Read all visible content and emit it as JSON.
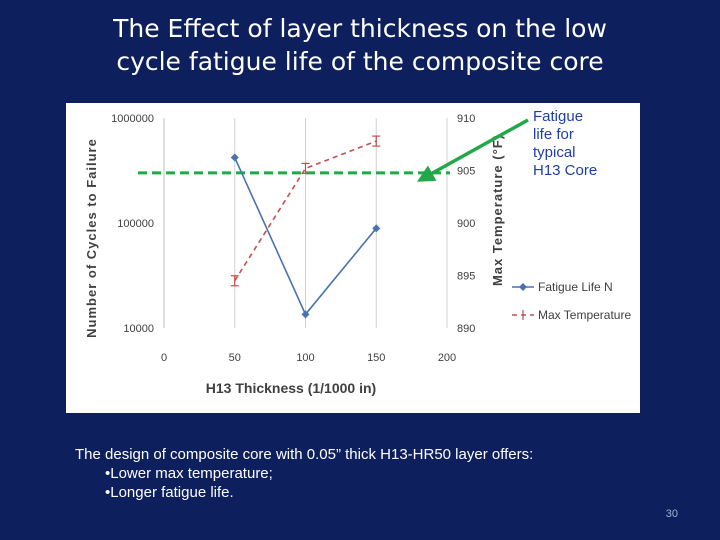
{
  "slide": {
    "title_line1": "The Effect of layer thickness on the low",
    "title_line2": "cycle fatigue life of the composite core",
    "callout": {
      "line1": "Fatigue",
      "line2": "life for",
      "line3": "typical",
      "line4": "H13 Core"
    },
    "body": {
      "intro": "The design of composite core with 0.05” thick H13-HR50 layer offers:",
      "bullets": [
        "•Lower max temperature;",
        "•Longer fatigue life."
      ]
    },
    "page_number": "30"
  },
  "colors": {
    "background": "#0d1f5c",
    "fatigue_series": "#4a72b0",
    "temperature_series": "#c0504d",
    "reference_line": "#22a84a"
  },
  "chart_data": {
    "type": "line",
    "title": "",
    "xlabel": "H13 Thickness (1/1000 in)",
    "ylabel": "Number of Cycles to Failure",
    "y2label": "Max Temperature  (°F)",
    "x_ticks": [
      "0",
      "50",
      "100",
      "150",
      "200"
    ],
    "xlim": [
      0,
      200
    ],
    "y_ticks": [
      "1000000",
      "100000",
      "10000"
    ],
    "ylim": [
      10000,
      1000000
    ],
    "y_scale": "log",
    "y2_ticks": [
      "910",
      "905",
      "900",
      "895",
      "890"
    ],
    "y2lim": [
      890,
      910
    ],
    "grid": "vertical",
    "legend_position": "right",
    "series": [
      {
        "name": "Fatigue Life N",
        "axis": "left",
        "marker": "diamond",
        "style": "solid",
        "x": [
          50,
          100,
          150
        ],
        "y": [
          420000,
          13500,
          89000
        ]
      },
      {
        "name": "Max Temperature",
        "axis": "right",
        "marker": "error-bar",
        "style": "dashed",
        "x": [
          50,
          100,
          150
        ],
        "y": [
          894.5,
          905.2,
          907.8
        ]
      }
    ],
    "reference_line": {
      "label": "Fatigue life for typical H13 Core",
      "y": 300000
    }
  }
}
